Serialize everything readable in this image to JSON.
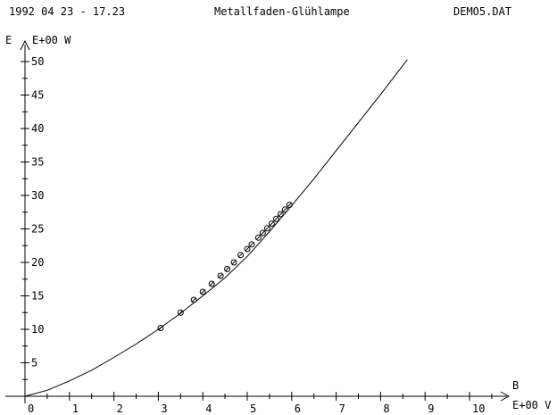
{
  "header": {
    "date_time": "1992 04 23 - 17.23",
    "title": "Metallfaden-Glühlampe",
    "file": "DEMO5.DAT"
  },
  "chart_data": {
    "type": "scatter",
    "title": "Metallfaden-Glühlampe",
    "y_axis": {
      "label": "E",
      "unit": "E+00 W",
      "ticks": [
        "5",
        "10",
        "15",
        "20",
        "25",
        "30",
        "35",
        "40",
        "45",
        "50"
      ],
      "range": [
        0,
        52
      ]
    },
    "x_axis": {
      "label": "B",
      "unit": "E+00 V",
      "ticks": [
        "0",
        "1",
        "2",
        "3",
        "4",
        "5",
        "6",
        "7",
        "8",
        "9",
        "10"
      ],
      "range": [
        0,
        10.6
      ]
    },
    "fit_curve": {
      "description": "fitted power curve through measurements",
      "points": [
        [
          0,
          0
        ],
        [
          0.5,
          0.9
        ],
        [
          1,
          2.3
        ],
        [
          1.5,
          3.9
        ],
        [
          2,
          5.8
        ],
        [
          2.5,
          7.8
        ],
        [
          3,
          10.0
        ],
        [
          3.5,
          12.4
        ],
        [
          4,
          15.0
        ],
        [
          4.5,
          17.7
        ],
        [
          5,
          20.9
        ],
        [
          5.5,
          24.6
        ],
        [
          6,
          28.5
        ],
        [
          6.5,
          32.5
        ],
        [
          7,
          36.7
        ],
        [
          7.5,
          40.9
        ],
        [
          8,
          45.1
        ],
        [
          8.6,
          50.3
        ]
      ]
    },
    "measurements": {
      "x": [
        3.05,
        3.5,
        3.8,
        4.0,
        4.2,
        4.4,
        4.55,
        4.7,
        4.85,
        5.0,
        5.1,
        5.25,
        5.35,
        5.45,
        5.55,
        5.65,
        5.75,
        5.85,
        5.95
      ],
      "y": [
        10.2,
        12.5,
        14.4,
        15.6,
        16.8,
        18.0,
        19.0,
        20.0,
        21.1,
        22.0,
        22.7,
        23.7,
        24.4,
        25.1,
        25.8,
        26.5,
        27.2,
        27.9,
        28.6
      ]
    },
    "colors": {
      "line": "#000000",
      "marker": "#000000",
      "background": "#ffffff"
    }
  }
}
